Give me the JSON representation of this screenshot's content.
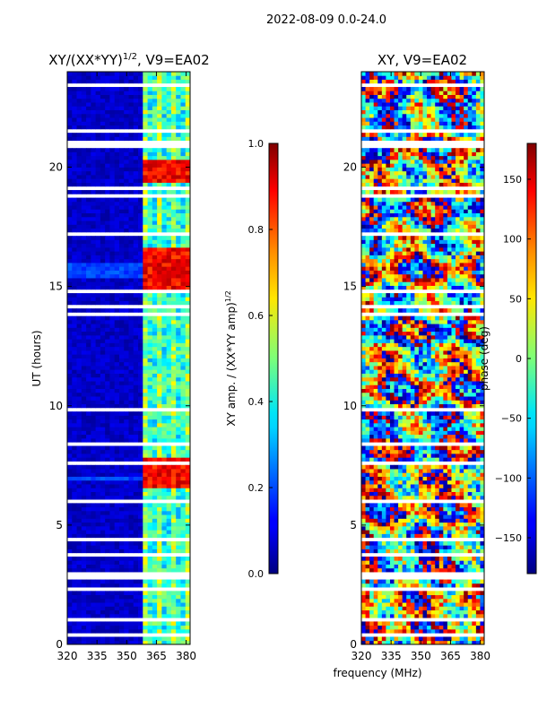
{
  "figure_title": "2022-08-09 0.0-24.0",
  "shared_xlabel": "frequency (MHz)",
  "colors": {
    "jet_dark_blue": "#00007f",
    "jet_red": "#ff0000",
    "gap_white": "#ffffff"
  },
  "chart_data": [
    {
      "type": "heatmap",
      "title": "XY/(XX*YY)^1/2, V9=EA02",
      "title_main": "XY/(XX*YY)",
      "title_sup": "1/2",
      "title_suffix": ", V9=EA02",
      "xlabel": "",
      "ylabel": "UT (hours)",
      "xlim": [
        320,
        382
      ],
      "ylim": [
        0,
        24
      ],
      "xticks": [
        320,
        335,
        350,
        365,
        380
      ],
      "yticks": [
        0,
        5,
        10,
        15,
        20
      ],
      "colorbar": {
        "label_main": "XY amp. / (XX*YY amp)",
        "label_sup": "1/2",
        "range": [
          0.0,
          1.0
        ],
        "ticks": [
          "0.0",
          "0.2",
          "0.4",
          "0.6",
          "0.8",
          "1.0"
        ]
      },
      "bright_channel_band_mhz": [
        360,
        382
      ],
      "high_amplitude_ut_ranges": [
        [
          6.5,
          7.8
        ],
        [
          14.8,
          16.6
        ],
        [
          19.3,
          20.3
        ]
      ]
    },
    {
      "type": "heatmap",
      "title": "XY, V9=EA02",
      "xlabel": "frequency (MHz)",
      "ylabel": "",
      "xlim": [
        320,
        382
      ],
      "ylim": [
        0,
        24
      ],
      "xticks": [
        320,
        335,
        350,
        365,
        380
      ],
      "yticks": [
        0,
        5,
        10,
        15,
        20
      ],
      "colorbar": {
        "label": "phase (deg)",
        "range": [
          -180,
          180
        ],
        "ticks": [
          "-150",
          "-100",
          "-50",
          "0",
          "50",
          "100",
          "150"
        ]
      }
    }
  ]
}
